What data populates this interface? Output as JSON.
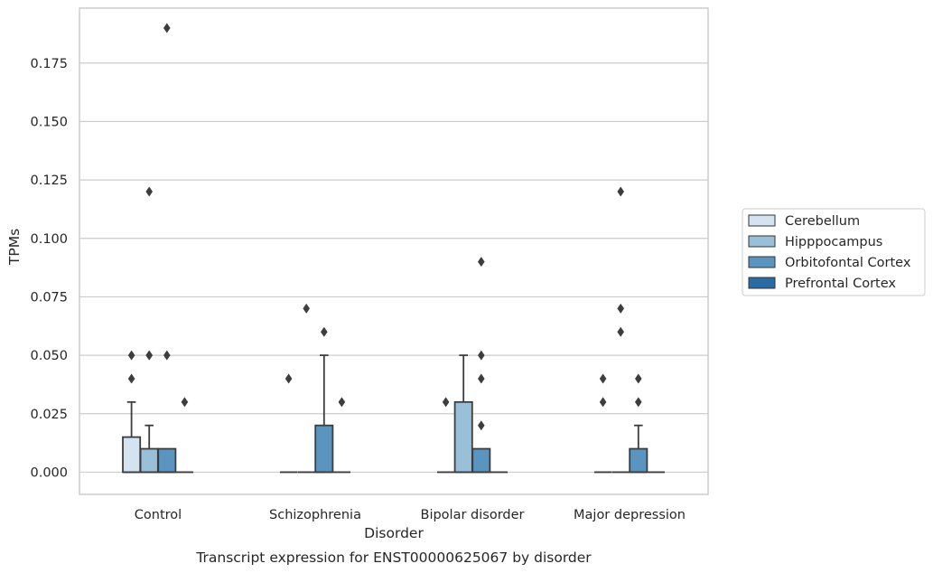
{
  "chart_data": {
    "type": "box",
    "title": "Transcript expression for ENST00000625067 by disorder",
    "xlabel": "Disorder",
    "ylabel": "TPMs",
    "categories": [
      "Control",
      "Schizophrenia",
      "Bipolar disorder",
      "Major depression"
    ],
    "yticks": [
      "0.000",
      "0.025",
      "0.050",
      "0.075",
      "0.100",
      "0.125",
      "0.150",
      "0.175"
    ],
    "ylim": [
      -0.0095,
      0.1985
    ],
    "grid": "horizontal",
    "legend_position": "right",
    "series": [
      {
        "name": "Cerebellum",
        "color": "#d3e3f0",
        "boxes": [
          {
            "q1": 0.0,
            "median": 0.0,
            "q3": 0.015,
            "whisker_low": 0.0,
            "whisker_high": 0.03,
            "outliers": [
              0.04,
              0.05
            ]
          },
          {
            "q1": 0.0,
            "median": 0.0,
            "q3": 0.0,
            "whisker_low": 0.0,
            "whisker_high": 0.0,
            "outliers": [
              0.04
            ]
          },
          {
            "q1": 0.0,
            "median": 0.0,
            "q3": 0.0,
            "whisker_low": 0.0,
            "whisker_high": 0.0,
            "outliers": [
              0.03
            ]
          },
          {
            "q1": 0.0,
            "median": 0.0,
            "q3": 0.0,
            "whisker_low": 0.0,
            "whisker_high": 0.0,
            "outliers": [
              0.03,
              0.04
            ]
          }
        ]
      },
      {
        "name": "Hipppocampus",
        "color": "#9ac0d9",
        "boxes": [
          {
            "q1": 0.0,
            "median": 0.0,
            "q3": 0.01,
            "whisker_low": 0.0,
            "whisker_high": 0.02,
            "outliers": [
              0.05,
              0.05,
              0.12
            ]
          },
          {
            "q1": 0.0,
            "median": 0.0,
            "q3": 0.0,
            "whisker_low": 0.0,
            "whisker_high": 0.0,
            "outliers": [
              0.07
            ]
          },
          {
            "q1": 0.0,
            "median": 0.0,
            "q3": 0.03,
            "whisker_low": 0.0,
            "whisker_high": 0.05,
            "outliers": []
          },
          {
            "q1": 0.0,
            "median": 0.0,
            "q3": 0.0,
            "whisker_low": 0.0,
            "whisker_high": 0.0,
            "outliers": [
              0.06,
              0.07,
              0.12
            ]
          }
        ]
      },
      {
        "name": "Orbitofontal Cortex",
        "color": "#5a94bf",
        "boxes": [
          {
            "q1": 0.0,
            "median": 0.0,
            "q3": 0.01,
            "whisker_low": 0.0,
            "whisker_high": 0.01,
            "outliers": [
              0.05,
              0.19
            ]
          },
          {
            "q1": 0.0,
            "median": 0.0,
            "q3": 0.02,
            "whisker_low": 0.0,
            "whisker_high": 0.05,
            "outliers": [
              0.06
            ]
          },
          {
            "q1": 0.0,
            "median": 0.0,
            "q3": 0.01,
            "whisker_low": 0.0,
            "whisker_high": 0.01,
            "outliers": [
              0.02,
              0.04,
              0.05,
              0.09
            ]
          },
          {
            "q1": 0.0,
            "median": 0.0,
            "q3": 0.01,
            "whisker_low": 0.0,
            "whisker_high": 0.02,
            "outliers": [
              0.03,
              0.04
            ]
          }
        ]
      },
      {
        "name": "Prefrontal Cortex",
        "color": "#2b6aa3",
        "boxes": [
          {
            "q1": 0.0,
            "median": 0.0,
            "q3": 0.0,
            "whisker_low": 0.0,
            "whisker_high": 0.0,
            "outliers": [
              0.03
            ]
          },
          {
            "q1": 0.0,
            "median": 0.0,
            "q3": 0.0,
            "whisker_low": 0.0,
            "whisker_high": 0.0,
            "outliers": [
              0.03
            ]
          },
          {
            "q1": 0.0,
            "median": 0.0,
            "q3": 0.0,
            "whisker_low": 0.0,
            "whisker_high": 0.0,
            "outliers": []
          },
          {
            "q1": 0.0,
            "median": 0.0,
            "q3": 0.0,
            "whisker_low": 0.0,
            "whisker_high": 0.0,
            "outliers": []
          }
        ]
      }
    ]
  }
}
